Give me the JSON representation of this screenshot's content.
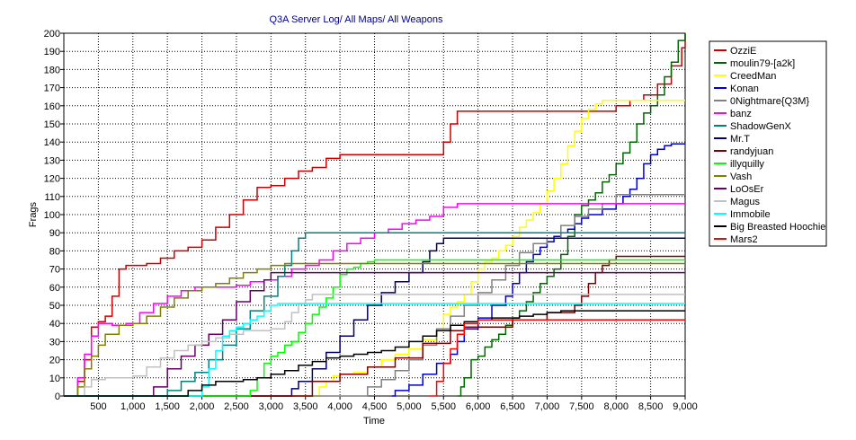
{
  "chart_data": {
    "type": "line",
    "title": "Q3A Server Log/ All Maps/ All Weapons",
    "xlabel": "Time",
    "ylabel": "Frags",
    "xlim": [
      0,
      9000
    ],
    "ylim": [
      0,
      200
    ],
    "x_ticks": [
      500,
      1000,
      1500,
      2000,
      2500,
      3000,
      3500,
      4000,
      4500,
      5000,
      5500,
      6000,
      6500,
      7000,
      7500,
      8000,
      8500,
      9000
    ],
    "x_tick_labels": [
      "500",
      "1,000",
      "1,500",
      "2,000",
      "2,500",
      "3,000",
      "3,500",
      "4,000",
      "4,500",
      "5,000",
      "5,500",
      "6,000",
      "6,500",
      "7,000",
      "7,500",
      "8,000",
      "8,500",
      "9,000"
    ],
    "y_ticks": [
      0,
      10,
      20,
      30,
      40,
      50,
      60,
      70,
      80,
      90,
      100,
      110,
      120,
      130,
      140,
      150,
      160,
      170,
      180,
      190,
      200
    ],
    "grid": true,
    "legend_position": "right",
    "series": [
      {
        "name": "OzziE",
        "color": "#cc0000",
        "x": [
          0,
          100,
          200,
          300,
          400,
          500,
          600,
          700,
          800,
          900,
          1000,
          1200,
          1400,
          1600,
          1800,
          2000,
          2200,
          2400,
          2600,
          2800,
          3000,
          3200,
          3400,
          3600,
          3800,
          4000,
          4500,
          5000,
          5400,
          5500,
          5600,
          5700,
          6000,
          7000,
          7500,
          7800,
          8000,
          8200,
          8400,
          8600,
          8800,
          8950,
          9000
        ],
        "y": [
          0,
          0,
          8,
          20,
          38,
          41,
          44,
          55,
          70,
          72,
          72,
          73,
          76,
          80,
          82,
          86,
          93,
          100,
          108,
          115,
          116,
          120,
          124,
          126,
          131,
          133,
          133,
          133,
          133,
          140,
          150,
          157,
          157,
          157,
          157,
          157,
          160,
          163,
          166,
          172,
          182,
          192,
          200
        ]
      },
      {
        "name": "moulin79-[a2k]",
        "color": "#006600",
        "x": [
          5700,
          5750,
          5800,
          5900,
          6000,
          6100,
          6200,
          6300,
          6400,
          6500,
          6600,
          6700,
          6800,
          6900,
          7000,
          7100,
          7200,
          7300,
          7400,
          7500,
          7600,
          7700,
          7800,
          7900,
          8000,
          8100,
          8200,
          8300,
          8400,
          8500,
          8600,
          8700,
          8800,
          8900,
          9000
        ],
        "y": [
          0,
          5,
          10,
          20,
          22,
          27,
          31,
          34,
          39,
          43,
          47,
          52,
          57,
          62,
          66,
          70,
          78,
          88,
          100,
          105,
          108,
          112,
          118,
          122,
          128,
          134,
          140,
          150,
          156,
          160,
          166,
          176,
          184,
          196,
          200
        ]
      },
      {
        "name": "CreedMan",
        "color": "#ffff00",
        "x": [
          0,
          3600,
          3700,
          3800,
          3900,
          4000,
          4200,
          4400,
          4600,
          4800,
          5000,
          5200,
          5400,
          5500,
          5600,
          5700,
          5800,
          5900,
          6000,
          6100,
          6200,
          6300,
          6400,
          6500,
          6600,
          6700,
          6800,
          6900,
          7000,
          7100,
          7200,
          7300,
          7400,
          7500,
          7600,
          7700,
          7800,
          7900,
          8000,
          8200,
          9000
        ],
        "y": [
          0,
          0,
          5,
          8,
          11,
          12,
          13,
          16,
          20,
          23,
          26,
          31,
          36,
          45,
          49,
          52,
          56,
          63,
          70,
          74,
          76,
          80,
          83,
          88,
          93,
          97,
          101,
          106,
          113,
          120,
          128,
          138,
          146,
          153,
          158,
          161,
          163,
          163,
          163,
          163,
          163
        ]
      },
      {
        "name": "Konan",
        "color": "#0000cc",
        "x": [
          4750,
          4800,
          5000,
          5200,
          5400,
          5600,
          5700,
          5800,
          6000,
          6200,
          6400,
          6500,
          6600,
          6700,
          6800,
          6900,
          7000,
          7100,
          7200,
          7300,
          7400,
          7500,
          7600,
          7800,
          8000,
          8100,
          8200,
          8300,
          8400,
          8500,
          8600,
          8700,
          8800,
          9000
        ],
        "y": [
          0,
          3,
          6,
          12,
          18,
          23,
          30,
          37,
          43,
          50,
          55,
          62,
          68,
          74,
          78,
          82,
          85,
          88,
          90,
          92,
          95,
          98,
          100,
          103,
          106,
          110,
          114,
          120,
          128,
          133,
          136,
          138,
          139,
          139
        ]
      },
      {
        "name": "0Nightmare{Q3M}",
        "color": "#808080",
        "x": [
          0,
          4300,
          4400,
          4600,
          4800,
          5000,
          5200,
          5400,
          5600,
          5800,
          6000,
          6200,
          6400,
          6600,
          6800,
          7000,
          7200,
          7400,
          7600,
          7800,
          8000,
          8200,
          9000
        ],
        "y": [
          0,
          0,
          5,
          9,
          14,
          20,
          28,
          37,
          44,
          50,
          57,
          64,
          72,
          79,
          84,
          87,
          94,
          99,
          103,
          106,
          111,
          111,
          111
        ]
      },
      {
        "name": "banz",
        "color": "#ff00ff",
        "x": [
          0,
          100,
          200,
          300,
          400,
          500,
          700,
          900,
          1100,
          1300,
          1500,
          1700,
          1900,
          2100,
          2300,
          2500,
          2700,
          2900,
          3100,
          3300,
          3500,
          3700,
          3900,
          4100,
          4300,
          4500,
          4700,
          4900,
          5100,
          5300,
          5500,
          5700,
          5900,
          6000,
          9000
        ],
        "y": [
          0,
          0,
          10,
          23,
          33,
          40,
          39,
          40,
          46,
          51,
          55,
          58,
          60,
          60,
          60,
          61,
          63,
          64,
          66,
          70,
          72,
          75,
          80,
          84,
          87,
          90,
          92,
          95,
          97,
          99,
          104,
          106,
          106,
          106,
          106
        ]
      },
      {
        "name": "ShadowGenX",
        "color": "#008080",
        "x": [
          0,
          1400,
          1500,
          1700,
          1900,
          2100,
          2300,
          2500,
          2700,
          2900,
          3100,
          3200,
          3300,
          3400,
          3500,
          3600,
          9000
        ],
        "y": [
          0,
          0,
          3,
          8,
          13,
          20,
          28,
          37,
          47,
          55,
          66,
          72,
          80,
          87,
          90,
          90,
          90
        ]
      },
      {
        "name": "Mr.T",
        "color": "#000066",
        "x": [
          0,
          3200,
          3300,
          3400,
          3600,
          3800,
          4000,
          4200,
          4400,
          4600,
          4800,
          5000,
          5200,
          5300,
          5400,
          5500,
          5600,
          9000
        ],
        "y": [
          0,
          0,
          4,
          8,
          15,
          24,
          33,
          42,
          50,
          57,
          63,
          68,
          74,
          80,
          84,
          87,
          87,
          87
        ]
      },
      {
        "name": "randyjuan",
        "color": "#800000",
        "x": [
          0,
          3500,
          3600,
          4000,
          4400,
          4800,
          5200,
          5600,
          5800,
          6000,
          6500,
          7000,
          7400,
          7500,
          7600,
          7700,
          7800,
          7900,
          8000,
          9000
        ],
        "y": [
          0,
          0,
          8,
          12,
          16,
          21,
          29,
          36,
          38,
          38,
          42,
          46,
          50,
          55,
          62,
          68,
          72,
          75,
          77,
          77
        ]
      },
      {
        "name": "illyquilly",
        "color": "#00ff00",
        "x": [
          0,
          2600,
          2700,
          2800,
          2900,
          3000,
          3100,
          3200,
          3300,
          3400,
          3500,
          3600,
          3700,
          3800,
          3900,
          4000,
          4100,
          4200,
          4300,
          4400,
          4500,
          4600,
          4800,
          5000,
          9000
        ],
        "y": [
          0,
          0,
          3,
          10,
          18,
          22,
          24,
          28,
          30,
          35,
          40,
          45,
          49,
          54,
          60,
          67,
          70,
          71,
          73,
          74,
          75,
          75,
          75,
          75,
          75
        ]
      },
      {
        "name": "Vash",
        "color": "#808000",
        "x": [
          0,
          100,
          200,
          300,
          400,
          500,
          600,
          800,
          1000,
          1200,
          1400,
          1600,
          1800,
          2000,
          2200,
          2400,
          2600,
          2800,
          3000,
          3200,
          3400,
          3500,
          9000
        ],
        "y": [
          0,
          0,
          5,
          15,
          22,
          28,
          34,
          39,
          40,
          44,
          49,
          54,
          58,
          60,
          62,
          65,
          68,
          70,
          72,
          73,
          73,
          73,
          73
        ]
      },
      {
        "name": "LoOsEr",
        "color": "#660066",
        "x": [
          0,
          1200,
          1300,
          1500,
          1700,
          1900,
          2100,
          2300,
          2500,
          2700,
          2900,
          3000,
          9000
        ],
        "y": [
          0,
          0,
          5,
          15,
          22,
          28,
          34,
          42,
          52,
          58,
          64,
          68,
          68
        ]
      },
      {
        "name": "Magus",
        "color": "#c0c0c0",
        "x": [
          0,
          200,
          300,
          400,
          600,
          800,
          1000,
          1200,
          1400,
          1600,
          1800,
          2000,
          2200,
          2400,
          2600,
          2800,
          3000,
          3200,
          3300,
          3400,
          3500,
          3600,
          9000
        ],
        "y": [
          0,
          0,
          5,
          9,
          10,
          10,
          11,
          16,
          21,
          25,
          28,
          30,
          32,
          34,
          36,
          36,
          37,
          41,
          46,
          51,
          53,
          56,
          56
        ]
      },
      {
        "name": "Immobile",
        "color": "#00ffff",
        "x": [
          0,
          1900,
          2000,
          2100,
          2200,
          2300,
          2400,
          2500,
          2600,
          2700,
          2800,
          2900,
          3000,
          3100,
          3200,
          3300,
          3400,
          9000
        ],
        "y": [
          0,
          0,
          5,
          15,
          25,
          33,
          36,
          38,
          40,
          42,
          44,
          47,
          50,
          51,
          51,
          51,
          51,
          51
        ]
      },
      {
        "name": "Big Breasted Hoochie",
        "color": "#000000",
        "x": [
          0,
          1700,
          1800,
          2000,
          2200,
          2400,
          2600,
          2800,
          3000,
          3200,
          3400,
          3600,
          3800,
          4000,
          4200,
          4400,
          4600,
          4800,
          5000,
          5200,
          5400,
          5600,
          5800,
          6000,
          6200,
          6400,
          6600,
          6800,
          7000,
          7200,
          7400,
          7600,
          9000
        ],
        "y": [
          0,
          0,
          3,
          6,
          8,
          8,
          9,
          10,
          12,
          14,
          17,
          19,
          21,
          22,
          23,
          24,
          25,
          27,
          30,
          33,
          36,
          39,
          41,
          42,
          43,
          43,
          44,
          45,
          46,
          47,
          47,
          47,
          47
        ]
      },
      {
        "name": "Mars2",
        "color": "#ff0000",
        "x": [
          5300,
          5400,
          5500,
          5600,
          5700,
          5800,
          6000,
          6500,
          7000,
          7500,
          7800,
          9000
        ],
        "y": [
          0,
          8,
          18,
          26,
          34,
          40,
          42,
          42,
          42,
          42,
          42,
          42
        ]
      }
    ]
  }
}
